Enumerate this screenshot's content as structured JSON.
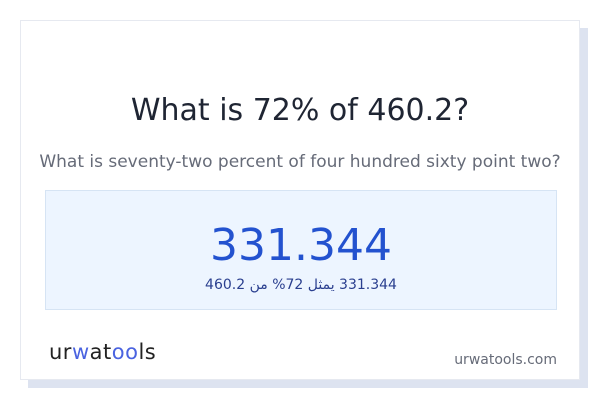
{
  "title": "What is 72% of 460.2?",
  "subtitle": "What is seventy-two percent of four hundred sixty point two?",
  "result": {
    "value": "331.344",
    "arabic_statement": "331.344 يمثل 72% من 460.2"
  },
  "brand": {
    "logo_part1": "ur",
    "logo_part2": "w",
    "logo_part3": "at",
    "logo_part4": "oo",
    "logo_part5": "ls",
    "site": "urwatools.com"
  },
  "colors": {
    "accent": "#2352cf",
    "logo_accent": "#4a63e0",
    "result_bg": "#edf5ff"
  }
}
